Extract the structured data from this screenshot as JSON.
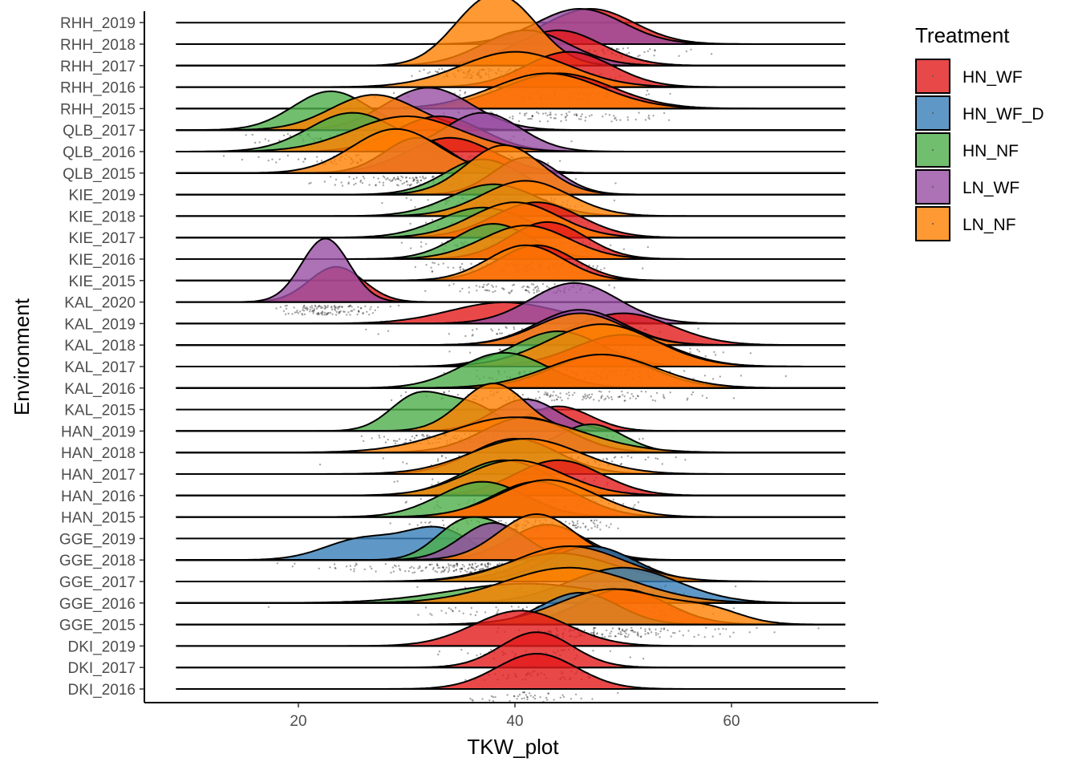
{
  "chart_data": {
    "type": "area",
    "subtype": "ridgeline",
    "title": "",
    "xlabel": "TKW_plot",
    "ylabel": "Environment",
    "xlim": [
      5,
      72
    ],
    "x_ticks": [
      20,
      40,
      60
    ],
    "grid": false,
    "legend": {
      "title": "Treatment",
      "position": "right",
      "items": [
        {
          "name": "HN_WF",
          "color": "#E41A1C"
        },
        {
          "name": "HN_WF_D",
          "color": "#377EB8"
        },
        {
          "name": "HN_NF",
          "color": "#4DAF4A"
        },
        {
          "name": "LN_WF",
          "color": "#984EA3"
        },
        {
          "name": "LN_NF",
          "color": "#FF7F00"
        }
      ]
    },
    "environments": [
      "DKI_2016",
      "DKI_2017",
      "DKI_2019",
      "GGE_2015",
      "GGE_2016",
      "GGE_2017",
      "GGE_2018",
      "GGE_2019",
      "HAN_2015",
      "HAN_2016",
      "HAN_2017",
      "HAN_2018",
      "HAN_2019",
      "KAL_2015",
      "KAL_2016",
      "KAL_2017",
      "KAL_2018",
      "KAL_2019",
      "KAL_2020",
      "KIE_2015",
      "KIE_2016",
      "KIE_2017",
      "KIE_2018",
      "KIE_2019",
      "QLB_2015",
      "QLB_2016",
      "QLB_2017",
      "RHH_2015",
      "RHH_2016",
      "RHH_2017",
      "RHH_2018",
      "RHH_2019"
    ],
    "series": [
      {
        "env": "DKI_2016",
        "name": "HN_WF",
        "peaks": [
          [
            42,
            3.7,
            1.0
          ]
        ]
      },
      {
        "env": "DKI_2017",
        "name": "HN_WF",
        "peaks": [
          [
            42,
            3.3,
            1.0
          ]
        ]
      },
      {
        "env": "DKI_2019",
        "name": "HN_WF",
        "peaks": [
          [
            40.5,
            4.3,
            1.0
          ]
        ]
      },
      {
        "env": "GGE_2015",
        "name": "HN_WF",
        "peaks": [
          [
            50,
            4,
            1.0
          ]
        ]
      },
      {
        "env": "GGE_2015",
        "name": "HN_WF_D",
        "peaks": [
          [
            46,
            3.5,
            0.9
          ]
        ]
      },
      {
        "env": "GGE_2015",
        "name": "LN_NF",
        "peaks": [
          [
            49,
            5,
            1.0
          ],
          [
            58,
            3,
            0.35
          ]
        ]
      },
      {
        "env": "GGE_2016",
        "name": "HN_WF_D",
        "peaks": [
          [
            50,
            5,
            1.0
          ]
        ]
      },
      {
        "env": "GGE_2016",
        "name": "HN_NF",
        "peaks": [
          [
            41,
            7,
            0.55
          ]
        ]
      },
      {
        "env": "GGE_2016",
        "name": "LN_NF",
        "peaks": [
          [
            45,
            6,
            1.0
          ]
        ]
      },
      {
        "env": "GGE_2017",
        "name": "HN_WF",
        "peaks": [
          [
            46,
            4.5,
            1.0
          ]
        ]
      },
      {
        "env": "GGE_2017",
        "name": "HN_WF_D",
        "peaks": [
          [
            47,
            4,
            1.0
          ]
        ]
      },
      {
        "env": "GGE_2017",
        "name": "HN_NF",
        "peaks": [
          [
            44,
            5,
            0.8
          ]
        ]
      },
      {
        "env": "GGE_2017",
        "name": "LN_NF",
        "peaks": [
          [
            45,
            5,
            1.0
          ]
        ]
      },
      {
        "env": "GGE_2018",
        "name": "HN_WF_D",
        "peaks": [
          [
            26,
            3.5,
            0.6
          ],
          [
            33,
            3,
            0.85
          ]
        ]
      },
      {
        "env": "GGE_2018",
        "name": "HN_NF",
        "peaks": [
          [
            35,
            2.5,
            0.95
          ],
          [
            39,
            2.5,
            0.7
          ]
        ]
      },
      {
        "env": "GGE_2018",
        "name": "HN_WF",
        "peaks": [
          [
            43,
            3.5,
            1.0
          ]
        ]
      },
      {
        "env": "GGE_2018",
        "name": "LN_WF",
        "peaks": [
          [
            38,
            3,
            1.05
          ]
        ]
      },
      {
        "env": "GGE_2018",
        "name": "LN_NF",
        "peaks": [
          [
            42,
            3.5,
            1.3
          ]
        ]
      },
      {
        "env": "HAN_2015",
        "name": "HN_NF",
        "peaks": [
          [
            37,
            4,
            1.0
          ]
        ]
      },
      {
        "env": "HAN_2015",
        "name": "HN_WF",
        "peaks": [
          [
            42,
            4,
            1.0
          ]
        ]
      },
      {
        "env": "HAN_2015",
        "name": "LN_NF",
        "peaks": [
          [
            43,
            4.5,
            1.05
          ]
        ]
      },
      {
        "env": "HAN_2016",
        "name": "HN_NF",
        "peaks": [
          [
            39,
            4,
            1.0
          ]
        ]
      },
      {
        "env": "HAN_2016",
        "name": "HN_WF",
        "peaks": [
          [
            44,
            4,
            1.0
          ]
        ]
      },
      {
        "env": "HAN_2016",
        "name": "LN_NF",
        "peaks": [
          [
            40,
            4.5,
            1.0
          ]
        ]
      },
      {
        "env": "HAN_2017",
        "name": "HN_NF",
        "peaks": [
          [
            40,
            4,
            1.0
          ]
        ]
      },
      {
        "env": "HAN_2017",
        "name": "LN_NF",
        "peaks": [
          [
            41,
            5,
            1.0
          ]
        ]
      },
      {
        "env": "HAN_2018",
        "name": "HN_NF",
        "peaks": [
          [
            47,
            3,
            0.8
          ]
        ]
      },
      {
        "env": "HAN_2018",
        "name": "LN_WF",
        "peaks": [
          [
            41,
            4,
            1.0
          ]
        ]
      },
      {
        "env": "HAN_2018",
        "name": "LN_NF",
        "peaks": [
          [
            40,
            6,
            1.0
          ]
        ]
      },
      {
        "env": "HAN_2019",
        "name": "HN_NF",
        "peaks": [
          [
            31,
            2.5,
            1.0
          ],
          [
            36,
            2.5,
            0.7
          ]
        ]
      },
      {
        "env": "HAN_2019",
        "name": "HN_WF",
        "peaks": [
          [
            44,
            3,
            0.7
          ]
        ]
      },
      {
        "env": "HAN_2019",
        "name": "LN_WF",
        "peaks": [
          [
            41,
            3,
            0.9
          ]
        ]
      },
      {
        "env": "HAN_2019",
        "name": "LN_NF",
        "peaks": [
          [
            38,
            3,
            1.35
          ]
        ]
      },
      {
        "env": "KAL_2016",
        "name": "HN_NF",
        "peaks": [
          [
            39,
            4,
            1.0
          ]
        ]
      },
      {
        "env": "KAL_2016",
        "name": "HN_WF",
        "peaks": [
          [
            48,
            4.5,
            0.95
          ]
        ]
      },
      {
        "env": "KAL_2016",
        "name": "LN_NF",
        "peaks": [
          [
            48,
            5,
            0.95
          ]
        ]
      },
      {
        "env": "KAL_2017",
        "name": "HN_NF",
        "peaks": [
          [
            44,
            4,
            1.0
          ]
        ]
      },
      {
        "env": "KAL_2017",
        "name": "HN_WF",
        "peaks": [
          [
            50,
            4.5,
            0.9
          ]
        ]
      },
      {
        "env": "KAL_2017",
        "name": "LN_NF",
        "peaks": [
          [
            48,
            5,
            1.2
          ]
        ]
      },
      {
        "env": "KAL_2018",
        "name": "HN_WF",
        "peaks": [
          [
            50,
            4.5,
            0.9
          ]
        ]
      },
      {
        "env": "KAL_2018",
        "name": "LN_WF",
        "peaks": [
          [
            46,
            4,
            1.0
          ]
        ]
      },
      {
        "env": "KAL_2018",
        "name": "LN_NF",
        "peaks": [
          [
            46,
            4,
            0.9
          ]
        ]
      },
      {
        "env": "KAL_2019",
        "name": "HN_WF",
        "peaks": [
          [
            39,
            5,
            0.6
          ]
        ]
      },
      {
        "env": "KAL_2019",
        "name": "LN_WF",
        "peaks": [
          [
            45.5,
            4,
            1.15
          ]
        ]
      },
      {
        "env": "KAL_2020",
        "name": "HN_WF",
        "peaks": [
          [
            23.5,
            2.5,
            1.0
          ]
        ]
      },
      {
        "env": "KAL_2020",
        "name": "LN_WF",
        "peaks": [
          [
            22.5,
            2.2,
            1.8
          ]
        ]
      },
      {
        "env": "KIE_2015",
        "name": "HN_WF",
        "peaks": [
          [
            42,
            3.5,
            1.0
          ]
        ]
      },
      {
        "env": "KIE_2015",
        "name": "LN_NF",
        "peaks": [
          [
            41,
            3.5,
            1.0
          ]
        ]
      },
      {
        "env": "KIE_2016",
        "name": "HN_NF",
        "peaks": [
          [
            38,
            3.5,
            1.0
          ]
        ]
      },
      {
        "env": "KIE_2016",
        "name": "HN_WF",
        "peaks": [
          [
            43,
            3.5,
            1.05
          ]
        ]
      },
      {
        "env": "KIE_2016",
        "name": "LN_NF",
        "peaks": [
          [
            41,
            4,
            0.95
          ]
        ]
      },
      {
        "env": "KIE_2017",
        "name": "HN_NF",
        "peaks": [
          [
            37,
            4,
            0.85
          ]
        ]
      },
      {
        "env": "KIE_2017",
        "name": "HN_WF",
        "peaks": [
          [
            42,
            4,
            1.0
          ]
        ]
      },
      {
        "env": "KIE_2017",
        "name": "LN_NF",
        "peaks": [
          [
            40,
            4,
            1.0
          ]
        ]
      },
      {
        "env": "KIE_2018",
        "name": "HN_NF",
        "peaks": [
          [
            38,
            4,
            0.9
          ]
        ]
      },
      {
        "env": "KIE_2018",
        "name": "LN_NF",
        "peaks": [
          [
            41,
            4,
            1.0
          ]
        ]
      },
      {
        "env": "KIE_2019",
        "name": "HN_NF",
        "peaks": [
          [
            37,
            3.5,
            1.0
          ]
        ]
      },
      {
        "env": "KIE_2019",
        "name": "LN_WF",
        "peaks": [
          [
            41,
            3,
            1.05
          ]
        ]
      },
      {
        "env": "KIE_2019",
        "name": "LN_NF",
        "peaks": [
          [
            39,
            3.5,
            1.4
          ]
        ]
      },
      {
        "env": "QLB_2015",
        "name": "HN_WF",
        "peaks": [
          [
            34,
            4,
            1.0
          ]
        ]
      },
      {
        "env": "QLB_2015",
        "name": "LN_WF",
        "peaks": [
          [
            31,
            3,
            1.0
          ]
        ]
      },
      {
        "env": "QLB_2015",
        "name": "LN_NF",
        "peaks": [
          [
            29,
            4,
            1.25
          ]
        ]
      },
      {
        "env": "QLB_2016",
        "name": "HN_NF",
        "peaks": [
          [
            25,
            4,
            1.1
          ]
        ]
      },
      {
        "env": "QLB_2016",
        "name": "HN_WF",
        "peaks": [
          [
            33,
            4,
            1.0
          ]
        ]
      },
      {
        "env": "QLB_2016",
        "name": "LN_WF",
        "peaks": [
          [
            37,
            3.5,
            1.1
          ]
        ]
      },
      {
        "env": "QLB_2016",
        "name": "LN_NF",
        "peaks": [
          [
            30,
            5,
            1.0
          ]
        ]
      },
      {
        "env": "QLB_2017",
        "name": "HN_NF",
        "peaks": [
          [
            23,
            3.5,
            1.1
          ]
        ]
      },
      {
        "env": "QLB_2017",
        "name": "LN_WF",
        "peaks": [
          [
            32,
            4,
            1.2
          ]
        ]
      },
      {
        "env": "QLB_2017",
        "name": "LN_NF",
        "peaks": [
          [
            27,
            4,
            1.0
          ]
        ]
      },
      {
        "env": "RHH_2015",
        "name": "HN_WF",
        "peaks": [
          [
            44,
            5,
            1.0
          ]
        ]
      },
      {
        "env": "RHH_2015",
        "name": "LN_NF",
        "peaks": [
          [
            43,
            5,
            1.0
          ]
        ]
      },
      {
        "env": "RHH_2016",
        "name": "HN_WF",
        "peaks": [
          [
            45,
            4,
            1.0
          ]
        ]
      },
      {
        "env": "RHH_2016",
        "name": "LN_NF",
        "peaks": [
          [
            40,
            5,
            1.0
          ]
        ]
      },
      {
        "env": "RHH_2017",
        "name": "HN_WF",
        "peaks": [
          [
            44,
            4,
            1.0
          ]
        ]
      },
      {
        "env": "RHH_2017",
        "name": "LN_WF",
        "peaks": [
          [
            41,
            4,
            1.0
          ]
        ]
      },
      {
        "env": "RHH_2017",
        "name": "LN_NF",
        "peaks": [
          [
            36.5,
            3,
            1.2
          ],
          [
            40,
            3,
            1.2
          ]
        ]
      },
      {
        "env": "RHH_2018",
        "name": "HN_WF",
        "peaks": [
          [
            47,
            4,
            1.0
          ]
        ]
      },
      {
        "env": "RHH_2018",
        "name": "LN_WF",
        "peaks": [
          [
            46,
            4,
            1.0
          ]
        ]
      }
    ]
  }
}
